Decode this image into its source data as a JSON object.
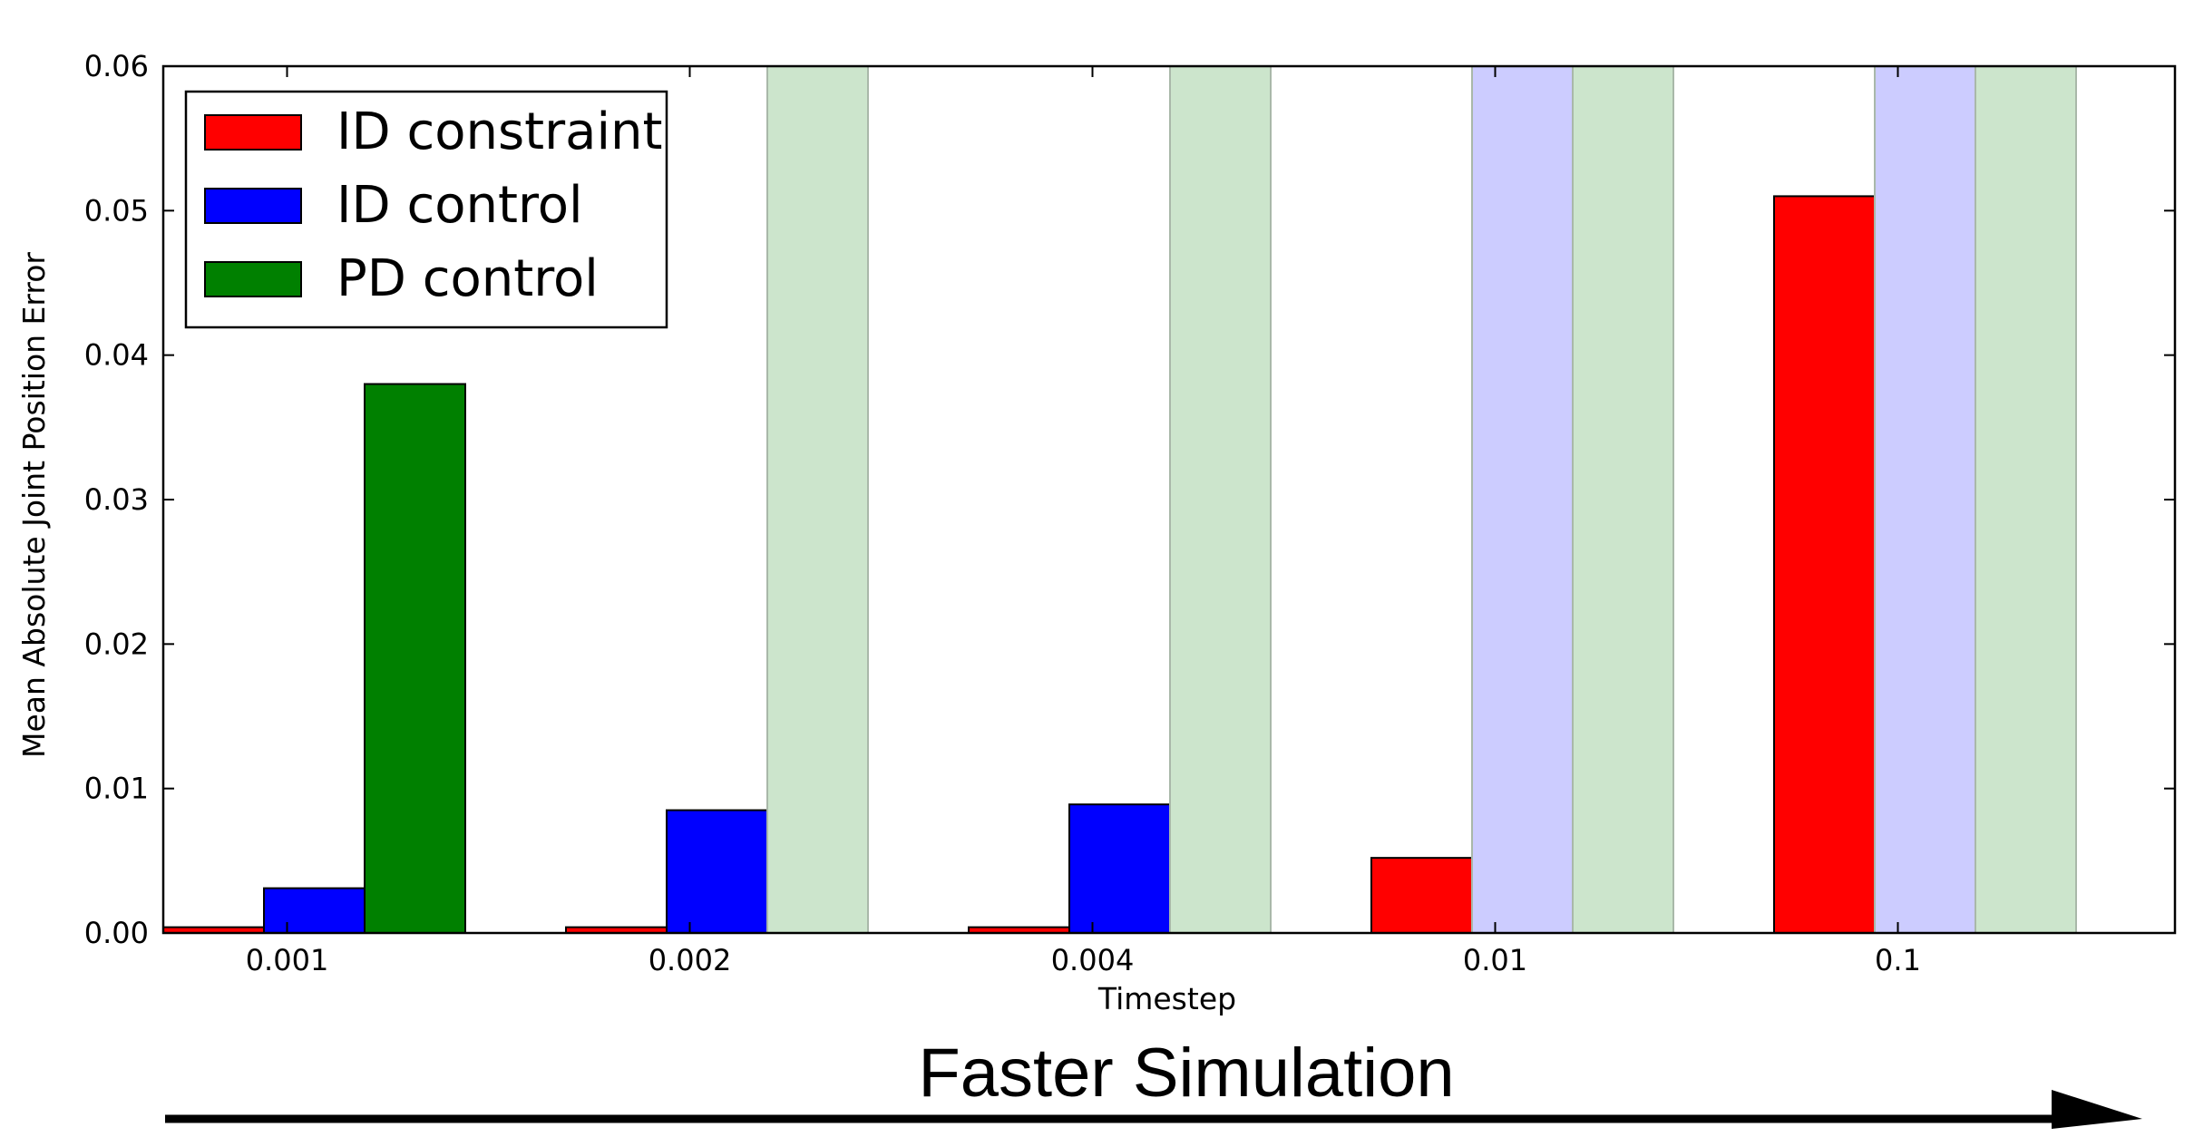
{
  "chart_data": {
    "type": "bar",
    "xlabel": "Timestep",
    "ylabel": "Mean Absolute Joint Position Error",
    "ylim": [
      0,
      0.06
    ],
    "yticks": [
      "0.00",
      "0.01",
      "0.02",
      "0.03",
      "0.04",
      "0.05",
      "0.06"
    ],
    "categories": [
      "0.001",
      "0.002",
      "0.004",
      "0.01",
      "0.1"
    ],
    "series": [
      {
        "name": "ID constraint",
        "color": "#ff0000",
        "values": [
          0.0004,
          0.0004,
          0.0004,
          0.0052,
          0.051
        ],
        "failed": [
          false,
          false,
          false,
          false,
          false
        ]
      },
      {
        "name": "ID control",
        "color": "#0000ff",
        "values": [
          0.0031,
          0.0085,
          0.0089,
          null,
          null
        ],
        "failed": [
          false,
          false,
          false,
          true,
          true
        ]
      },
      {
        "name": "PD control",
        "color": "#008000",
        "values": [
          0.038,
          null,
          null,
          null,
          null
        ],
        "failed": [
          false,
          true,
          true,
          true,
          true
        ]
      }
    ],
    "grid": false,
    "legend_position": "top-left",
    "failed_marker": "light shaded full-height bar"
  },
  "caption": {
    "text": "Faster Simulation",
    "arrow": "right-arrow"
  }
}
